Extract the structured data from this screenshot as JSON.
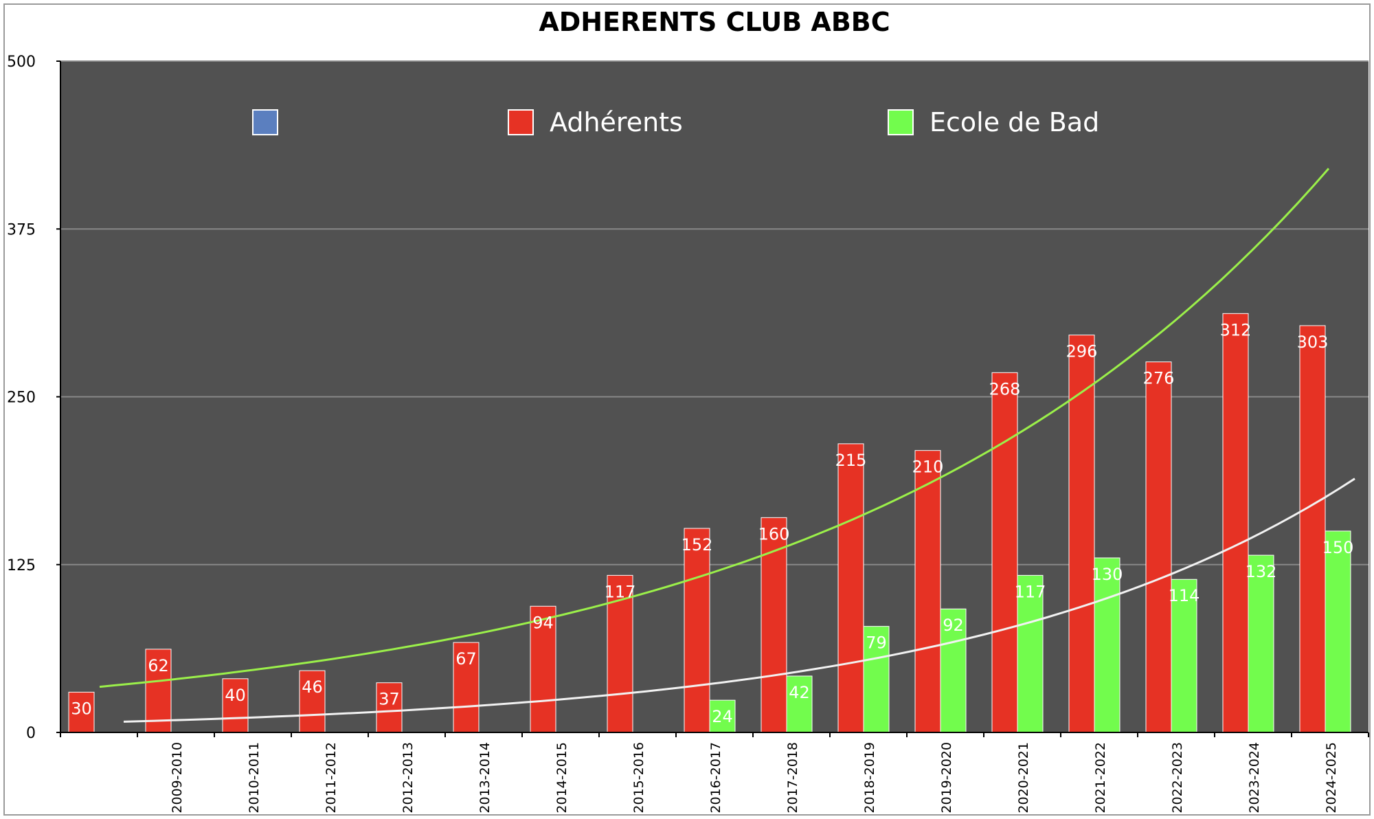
{
  "chart_data": {
    "type": "bar",
    "title": "ADHERENTS CLUB ABBC",
    "xlabel": "",
    "ylabel": "",
    "ylim": [
      0,
      500
    ],
    "yticks": [
      "0",
      "125",
      "250",
      "375",
      "500"
    ],
    "grid": true,
    "legend_placement": "top",
    "plot_background": "#515151",
    "categories": [
      "",
      "2009-2010",
      "2010-2011",
      "2011-2012",
      "2012-2013",
      "2013-2014",
      "2014-2015",
      "2015-2016",
      "2016-2017",
      "2017-2018",
      "2018-2019",
      "2019-2020",
      "2020-2021",
      "2021-2022",
      "2022-2023",
      "2023-2024",
      "2024-2025"
    ],
    "legend": [
      {
        "name": "",
        "color": "#5b7fbf"
      },
      {
        "name": "Adhérents",
        "color": "#e63224"
      },
      {
        "name": "Ecole de Bad",
        "color": "#72fc4d"
      }
    ],
    "series": [
      {
        "name": "Adhérents",
        "color": "#e63224",
        "values": [
          30,
          62,
          40,
          46,
          37,
          67,
          94,
          117,
          152,
          160,
          215,
          210,
          268,
          296,
          276,
          312,
          303
        ],
        "labels": [
          "30",
          "62",
          "40",
          "46",
          "37",
          "67",
          "94",
          "117",
          "152",
          "160",
          "215",
          "210",
          "268",
          "296",
          "276",
          "312",
          "303"
        ]
      },
      {
        "name": "Ecole de Bad",
        "color": "#72fc4d",
        "values": [
          null,
          null,
          null,
          null,
          null,
          null,
          null,
          null,
          24,
          42,
          79,
          92,
          117,
          130,
          114,
          132,
          150
        ],
        "labels": [
          "",
          "",
          "",
          "",
          "",
          "",
          "",
          "",
          "24",
          "42",
          "79",
          "92",
          "117",
          "130",
          "114",
          "132",
          "150"
        ]
      }
    ],
    "trendlines": [
      {
        "type": "exponential",
        "color": "#9bf04a",
        "start_value": 34,
        "end_value": 420
      },
      {
        "type": "exponential",
        "color": "#f2f2f2",
        "start_value": 8,
        "end_value": 189
      }
    ]
  }
}
